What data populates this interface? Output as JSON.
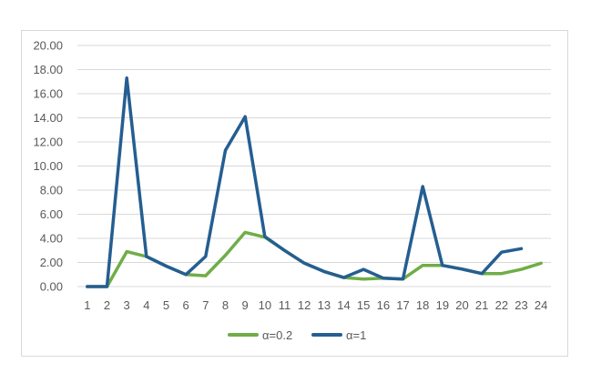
{
  "chart_data": {
    "type": "line",
    "title": "",
    "xlabel": "",
    "ylabel": "",
    "categories": [
      "1",
      "2",
      "3",
      "4",
      "5",
      "6",
      "7",
      "8",
      "9",
      "10",
      "11",
      "12",
      "13",
      "14",
      "15",
      "16",
      "17",
      "18",
      "19",
      "20",
      "21",
      "22",
      "23",
      "24"
    ],
    "ylim": [
      0,
      20
    ],
    "yticks": [
      "0.00",
      "2.00",
      "4.00",
      "6.00",
      "8.00",
      "10.00",
      "12.00",
      "14.00",
      "16.00",
      "18.00",
      "20.00"
    ],
    "grid": true,
    "legend_position": "bottom",
    "series": [
      {
        "name": "α=0.2",
        "color": "#70ad47",
        "values": [
          0,
          0,
          2.9,
          2.5,
          1.7,
          1.0,
          0.9,
          2.6,
          4.5,
          4.1,
          3.0,
          1.94,
          1.25,
          0.75,
          0.63,
          0.7,
          0.63,
          1.76,
          1.76,
          1.45,
          1.08,
          1.08,
          1.43,
          1.94
        ]
      },
      {
        "name": "α=1",
        "color": "#255e91",
        "values": [
          0,
          0,
          17.3,
          2.5,
          1.7,
          1.0,
          2.5,
          11.3,
          14.1,
          4.15,
          3.0,
          1.94,
          1.25,
          0.75,
          1.43,
          0.7,
          0.63,
          8.3,
          1.76,
          1.45,
          1.08,
          2.85,
          3.15,
          null
        ]
      }
    ]
  }
}
